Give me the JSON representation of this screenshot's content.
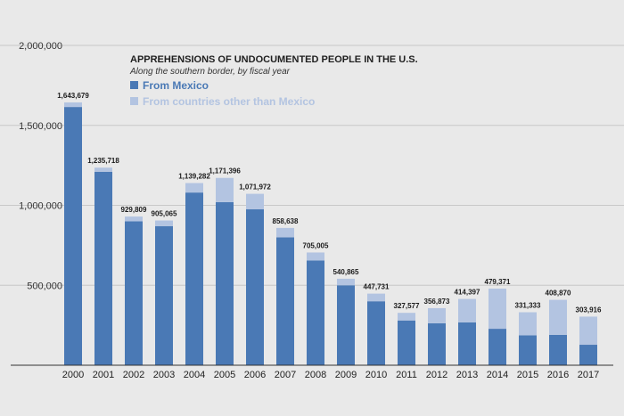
{
  "chart_data": {
    "type": "bar",
    "stacked": true,
    "title": "APPREHENSIONS OF UNDOCUMENTED PEOPLE IN THE U.S.",
    "subtitle": "Along the southern border, by fiscal year",
    "categories": [
      "2000",
      "2001",
      "2002",
      "2003",
      "2004",
      "2005",
      "2006",
      "2007",
      "2008",
      "2009",
      "2010",
      "2011",
      "2012",
      "2013",
      "2014",
      "2015",
      "2016",
      "2017"
    ],
    "totals": [
      1643679,
      1235718,
      929809,
      905065,
      1139282,
      1171396,
      1071972,
      858638,
      705005,
      540865,
      447731,
      327577,
      356873,
      414397,
      479371,
      331333,
      408870,
      303916
    ],
    "total_labels": [
      "1,643,679",
      "1,235,718",
      "929,809",
      "905,065",
      "1,139,282",
      "1,171,396",
      "1,071,972",
      "858,638",
      "705,005",
      "540,865",
      "447,731",
      "327,577",
      "356,873",
      "414,397",
      "479,371",
      "331,333",
      "408,870",
      "303,916"
    ],
    "series": [
      {
        "name": "From Mexico",
        "color": "#4a79b5",
        "values": [
          1615000,
          1210000,
          900000,
          870000,
          1080000,
          1020000,
          975000,
          800000,
          655000,
          500000,
          400000,
          280000,
          262000,
          268000,
          228000,
          187000,
          190000,
          128000
        ]
      },
      {
        "name": "From countries other than Mexico",
        "color": "#b3c4e1",
        "values": [
          28679,
          25718,
          29809,
          35065,
          59282,
          151396,
          96972,
          58638,
          50005,
          40865,
          47731,
          47577,
          94873,
          146397,
          251371,
          144333,
          218870,
          175916
        ]
      }
    ],
    "ylim": [
      0,
      2000000
    ],
    "yticks": [
      0,
      500000,
      1000000,
      1500000,
      2000000
    ],
    "ytick_labels": [
      "",
      "500,000",
      "1,000,000",
      "1,500,000",
      "2,000,000"
    ],
    "grid": true,
    "legend_position": "top-left"
  }
}
